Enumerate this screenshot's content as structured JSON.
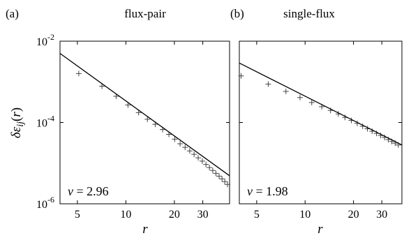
{
  "chart_data": [
    {
      "type": "scatter",
      "panel_label": "(a)",
      "title": "flux-pair",
      "xlabel": "r",
      "ylabel": "δε_ij(r)",
      "xscale": "log",
      "yscale": "log",
      "xlim": [
        3.9,
        44
      ],
      "ylim": [
        1e-06,
        0.01
      ],
      "xticks": [
        5,
        10,
        20,
        30
      ],
      "xtick_labels": [
        "5",
        "10",
        "20",
        "30"
      ],
      "yticks": [
        1e-06,
        0.0001,
        0.01
      ],
      "ytick_labels": [
        {
          "base": "10",
          "exp": "-6"
        },
        {
          "base": "10",
          "exp": "-4"
        },
        {
          "base": "10",
          "exp": "-2"
        }
      ],
      "annotation": {
        "symbol": "ν",
        "text": " = 2.96"
      },
      "grid": false,
      "series": [
        {
          "marker": "+",
          "x": [
            5.1,
            7.1,
            8.7,
            10.3,
            12.0,
            13.6,
            15.2,
            16.9,
            18.5,
            20.1,
            21.7,
            23.3,
            24.9,
            26.5,
            28.1,
            29.8,
            31.4,
            33.0,
            34.6,
            36.2,
            37.9,
            39.5,
            41.1,
            42.7
          ],
          "y": [
            0.0016,
            0.00078,
            0.00044,
            0.00027,
            0.000175,
            0.00012,
            9e-05,
            6.7e-05,
            5.1e-05,
            3.9e-05,
            3e-05,
            2.45e-05,
            2e-05,
            1.65e-05,
            1.35e-05,
            1.12e-05,
            9.3e-06,
            7.8e-06,
            6.6e-06,
            5.6e-06,
            4.8e-06,
            4.1e-06,
            3.5e-06,
            3e-06
          ]
        },
        {
          "type": "line",
          "x": [
            3.9,
            44
          ],
          "y": [
            0.005,
            4.9e-06
          ]
        }
      ]
    },
    {
      "type": "scatter",
      "panel_label": "(b)",
      "title": "single-flux",
      "xlabel": "r",
      "ylabel": "",
      "xscale": "log",
      "yscale": "log",
      "xlim": [
        3.9,
        40
      ],
      "ylim": [
        1e-06,
        0.01
      ],
      "xticks": [
        5,
        10,
        20,
        30
      ],
      "xtick_labels": [
        "5",
        "10",
        "20",
        "30"
      ],
      "yticks": [
        1e-06,
        0.0001,
        0.01
      ],
      "annotation": {
        "symbol": "ν",
        "text": " = 1.98"
      },
      "grid": false,
      "series": [
        {
          "marker": "+",
          "x": [
            4.0,
            5.9,
            7.6,
            9.3,
            11.0,
            12.7,
            14.4,
            16.1,
            17.7,
            19.4,
            21.1,
            22.8,
            24.4,
            26.1,
            27.8,
            29.5,
            31.2,
            32.9,
            34.6,
            36.3,
            38.0
          ],
          "y": [
            0.0014,
            0.00088,
            0.00058,
            0.00041,
            0.00031,
            0.000245,
            0.000198,
            0.000162,
            0.000133,
            0.000112,
            9.5e-05,
            8.1e-05,
            7e-05,
            6.1e-05,
            5.4e-05,
            4.8e-05,
            4.3e-05,
            3.8e-05,
            3.4e-05,
            3.1e-05,
            2.8e-05
          ]
        },
        {
          "type": "line",
          "x": [
            3.9,
            40
          ],
          "y": [
            0.0029,
            2.8e-05
          ]
        }
      ]
    }
  ]
}
